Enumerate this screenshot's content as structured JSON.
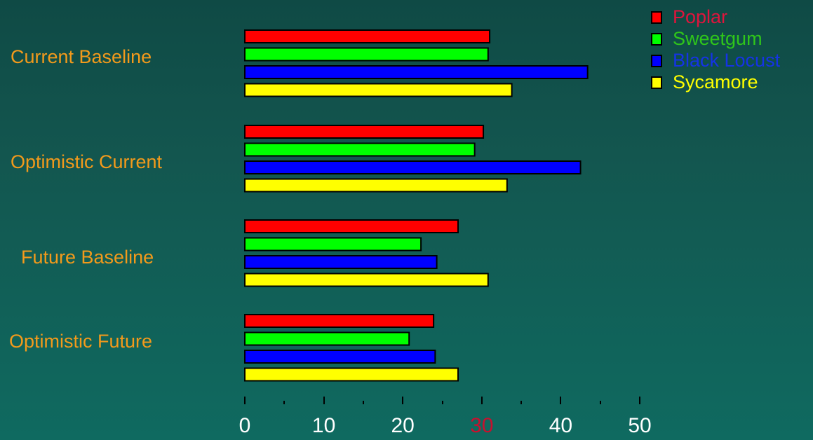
{
  "chart_data": {
    "type": "bar",
    "orientation": "horizontal",
    "categories": [
      "Current Baseline",
      "Optimistic Current",
      "Future Baseline",
      "Optimistic Future"
    ],
    "series": [
      {
        "name": "Poplar",
        "color": "#ff0000",
        "legend_text_color": "#e0143c",
        "values": [
          31,
          30.2,
          27,
          23.9
        ]
      },
      {
        "name": "Sweetgum",
        "color": "#00ff00",
        "legend_text_color": "#2fc61a",
        "values": [
          30.8,
          29.1,
          22.3,
          20.8
        ]
      },
      {
        "name": "Black Locust",
        "color": "#0000ff",
        "legend_text_color": "#1533e6",
        "values": [
          43.4,
          42.5,
          24.3,
          24.1
        ]
      },
      {
        "name": "Sycamore",
        "color": "#ffff00",
        "legend_text_color": "#ffff00",
        "values": [
          33.8,
          33.2,
          30.8,
          27
        ]
      }
    ],
    "xlim": [
      0,
      50
    ],
    "xticks": [
      "0",
      "10",
      "20",
      "30",
      "40",
      "50"
    ],
    "xtick_colors": [
      "#ffffff",
      "#ffffff",
      "#ffffff",
      "#c8102e",
      "#ffffff",
      "#ffffff"
    ],
    "minor_tick_step": 5,
    "title": "",
    "xlabel": "",
    "ylabel": "",
    "legend_position": "top-right",
    "category_label_color": "#f39a1b",
    "grid": false
  }
}
